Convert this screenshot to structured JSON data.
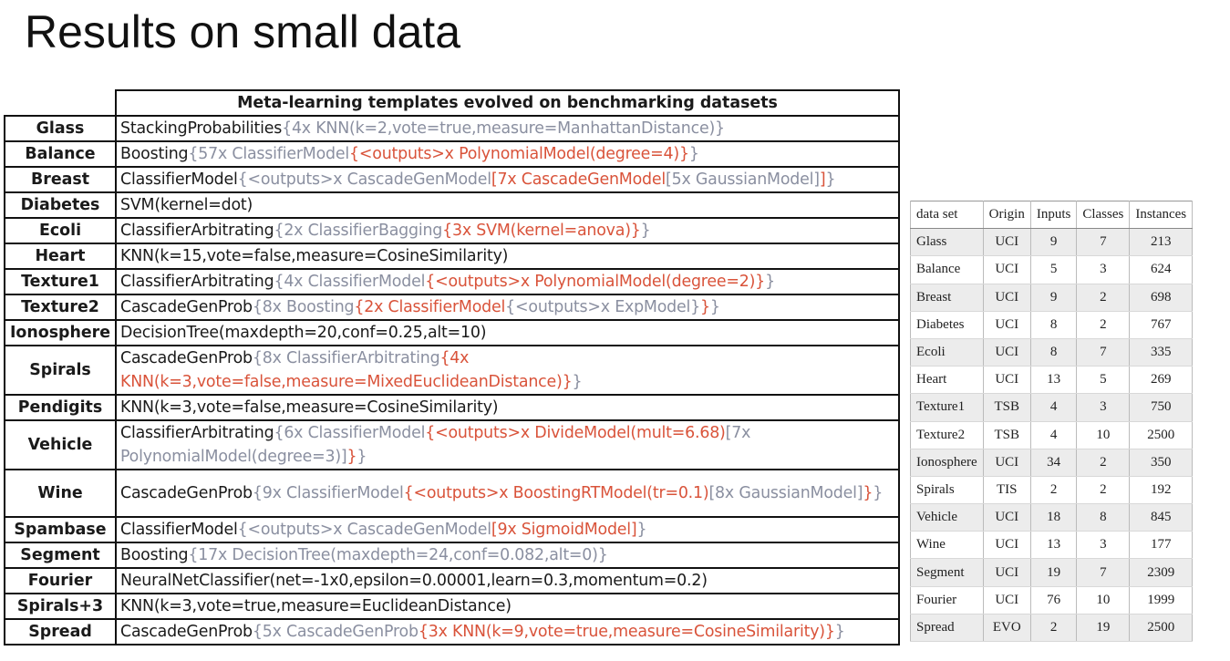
{
  "slide": {
    "title": "Results on small data"
  },
  "meta_table": {
    "header": "Meta-learning templates evolved on benchmarking datasets",
    "rows": [
      {
        "name": "Glass",
        "segments": [
          {
            "text": "StackingProbabilities",
            "color": "black"
          },
          {
            "text": "{4x KNN(k=2,vote=true,measure=ManhattanDistance)}",
            "color": "gray"
          }
        ]
      },
      {
        "name": "Balance",
        "segments": [
          {
            "text": "Boosting",
            "color": "black"
          },
          {
            "text": "{57x ClassifierModel",
            "color": "gray"
          },
          {
            "text": "{<outputs>x PolynomialModel(degree=4)}",
            "color": "red"
          },
          {
            "text": "}",
            "color": "gray"
          }
        ]
      },
      {
        "name": "Breast",
        "segments": [
          {
            "text": "ClassifierModel",
            "color": "black"
          },
          {
            "text": "{<outputs>x CascadeGenModel",
            "color": "gray"
          },
          {
            "text": "[7x CascadeGenModel",
            "color": "red"
          },
          {
            "text": "[5x GaussianModel]",
            "color": "gray"
          },
          {
            "text": "]",
            "color": "red"
          },
          {
            "text": "}",
            "color": "gray"
          }
        ]
      },
      {
        "name": "Diabetes",
        "segments": [
          {
            "text": "SVM(kernel=dot)",
            "color": "black"
          }
        ]
      },
      {
        "name": "Ecoli",
        "segments": [
          {
            "text": "ClassifierArbitrating",
            "color": "black"
          },
          {
            "text": "{2x ClassifierBagging",
            "color": "gray"
          },
          {
            "text": "{3x SVM(kernel=anova)}",
            "color": "red"
          },
          {
            "text": "}",
            "color": "gray"
          }
        ]
      },
      {
        "name": "Heart",
        "segments": [
          {
            "text": "KNN(k=15,vote=false,measure=CosineSimilarity)",
            "color": "black"
          }
        ]
      },
      {
        "name": "Texture1",
        "segments": [
          {
            "text": "ClassifierArbitrating",
            "color": "black"
          },
          {
            "text": "{4x ClassifierModel",
            "color": "gray"
          },
          {
            "text": "{<outputs>x PolynomialModel(degree=2)}",
            "color": "red"
          },
          {
            "text": "}",
            "color": "gray"
          }
        ]
      },
      {
        "name": "Texture2",
        "segments": [
          {
            "text": "CascadeGenProb",
            "color": "black"
          },
          {
            "text": "{8x Boosting",
            "color": "gray"
          },
          {
            "text": "{2x ClassifierModel",
            "color": "red"
          },
          {
            "text": "{<outputs>x ExpModel}",
            "color": "gray"
          },
          {
            "text": "}",
            "color": "red"
          },
          {
            "text": "}",
            "color": "gray"
          }
        ]
      },
      {
        "name": "Ionosphere",
        "segments": [
          {
            "text": "DecisionTree(maxdepth=20,conf=0.25,alt=10)",
            "color": "black"
          }
        ]
      },
      {
        "name": "Spirals",
        "segments": [
          {
            "text": "CascadeGenProb",
            "color": "black"
          },
          {
            "text": "{8x ClassifierArbitrating",
            "color": "gray"
          },
          {
            "text": "{4x KNN(k=3,vote=false,measure=MixedEuclideanDistance)}",
            "color": "red"
          },
          {
            "text": "}",
            "color": "gray"
          }
        ]
      },
      {
        "name": "Pendigits",
        "segments": [
          {
            "text": "KNN(k=3,vote=false,measure=CosineSimilarity)",
            "color": "black"
          }
        ]
      },
      {
        "name": "Vehicle",
        "segments": [
          {
            "text": "ClassifierArbitrating",
            "color": "black"
          },
          {
            "text": "{6x ClassifierModel",
            "color": "gray"
          },
          {
            "text": "{<outputs>x DivideModel(mult=6.68)",
            "color": "red"
          },
          {
            "text": "[7x PolynomialModel(degree=3)]",
            "color": "gray"
          },
          {
            "text": "}",
            "color": "red"
          },
          {
            "text": "}",
            "color": "gray"
          }
        ]
      },
      {
        "name": "Wine",
        "segments": [
          {
            "text": "CascadeGenProb",
            "color": "black"
          },
          {
            "text": "{9x ClassifierModel",
            "color": "gray"
          },
          {
            "text": "{<outputs>x BoostingRTModel(tr=0.1)",
            "color": "red"
          },
          {
            "text": "[8x GaussianModel]",
            "color": "gray"
          },
          {
            "text": "}",
            "color": "red"
          },
          {
            "text": "}",
            "color": "gray"
          }
        ]
      },
      {
        "name": "Spambase",
        "segments": [
          {
            "text": "ClassifierModel",
            "color": "black"
          },
          {
            "text": "{<outputs>x CascadeGenModel",
            "color": "gray"
          },
          {
            "text": "[9x SigmoidModel]",
            "color": "red"
          },
          {
            "text": "}",
            "color": "gray"
          }
        ]
      },
      {
        "name": "Segment",
        "segments": [
          {
            "text": "Boosting",
            "color": "black"
          },
          {
            "text": "{17x DecisionTree(maxdepth=24,conf=0.082,alt=0)}",
            "color": "gray"
          }
        ]
      },
      {
        "name": "Fourier",
        "segments": [
          {
            "text": "NeuralNetClassifier(net=-1x0,epsilon=0.00001,learn=0.3,momentum=0.2)",
            "color": "black"
          }
        ]
      },
      {
        "name": "Spirals+3",
        "segments": [
          {
            "text": "KNN(k=3,vote=true,measure=EuclideanDistance)",
            "color": "black"
          }
        ]
      },
      {
        "name": "Spread",
        "segments": [
          {
            "text": "CascadeGenProb",
            "color": "black"
          },
          {
            "text": "{5x CascadeGenProb",
            "color": "gray"
          },
          {
            "text": "{3x KNN(k=9,vote=true,measure=CosineSimilarity)}",
            "color": "red"
          },
          {
            "text": "}",
            "color": "gray"
          }
        ]
      }
    ]
  },
  "info_table": {
    "columns": [
      "data set",
      "Origin",
      "Inputs",
      "Classes",
      "Instances"
    ],
    "rows": [
      [
        "Glass",
        "UCI",
        "9",
        "7",
        "213"
      ],
      [
        "Balance",
        "UCI",
        "5",
        "3",
        "624"
      ],
      [
        "Breast",
        "UCI",
        "9",
        "2",
        "698"
      ],
      [
        "Diabetes",
        "UCI",
        "8",
        "2",
        "767"
      ],
      [
        "Ecoli",
        "UCI",
        "8",
        "7",
        "335"
      ],
      [
        "Heart",
        "UCI",
        "13",
        "5",
        "269"
      ],
      [
        "Texture1",
        "TSB",
        "4",
        "3",
        "750"
      ],
      [
        "Texture2",
        "TSB",
        "4",
        "10",
        "2500"
      ],
      [
        "Ionosphere",
        "UCI",
        "34",
        "2",
        "350"
      ],
      [
        "Spirals",
        "TIS",
        "2",
        "2",
        "192"
      ],
      [
        "Vehicle",
        "UCI",
        "18",
        "8",
        "845"
      ],
      [
        "Wine",
        "UCI",
        "13",
        "3",
        "177"
      ],
      [
        "Segment",
        "UCI",
        "19",
        "7",
        "2309"
      ],
      [
        "Fourier",
        "UCI",
        "76",
        "10",
        "1999"
      ],
      [
        "Spread",
        "EVO",
        "2",
        "19",
        "2500"
      ]
    ]
  }
}
